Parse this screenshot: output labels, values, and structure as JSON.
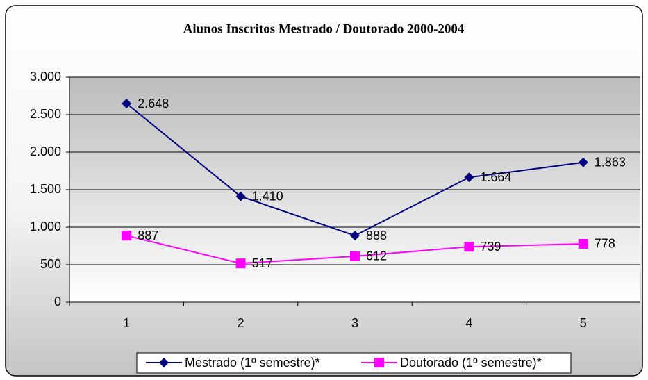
{
  "chart_data": {
    "type": "line",
    "title": "Alunos Inscritos Mestrado / Doutorado 2000-2004",
    "categories": [
      "1",
      "2",
      "3",
      "4",
      "5"
    ],
    "series": [
      {
        "name": "Mestrado (1º semestre)*",
        "color": "#000080",
        "marker": "diamond",
        "values": [
          2648,
          1410,
          888,
          1664,
          1863
        ],
        "value_labels": [
          "2.648",
          "1.410",
          "888",
          "1.664",
          "1.863"
        ]
      },
      {
        "name": "Doutorado (1º semestre)*",
        "color": "#ff00ff",
        "marker": "square",
        "values": [
          887,
          517,
          612,
          739,
          778
        ],
        "value_labels": [
          "887",
          "517",
          "612",
          "739",
          "778"
        ]
      }
    ],
    "ylim": [
      0,
      3000
    ],
    "yticks": [
      0,
      500,
      {
        "value": 1000,
        "label": "1.000"
      },
      {
        "value": 1500,
        "label": "1.500"
      },
      {
        "value": 2000,
        "label": "2.000"
      },
      {
        "value": 2500,
        "label": "2.500"
      },
      {
        "value": 3000,
        "label": "3.000"
      }
    ],
    "grid": true,
    "legend": "bottom"
  }
}
